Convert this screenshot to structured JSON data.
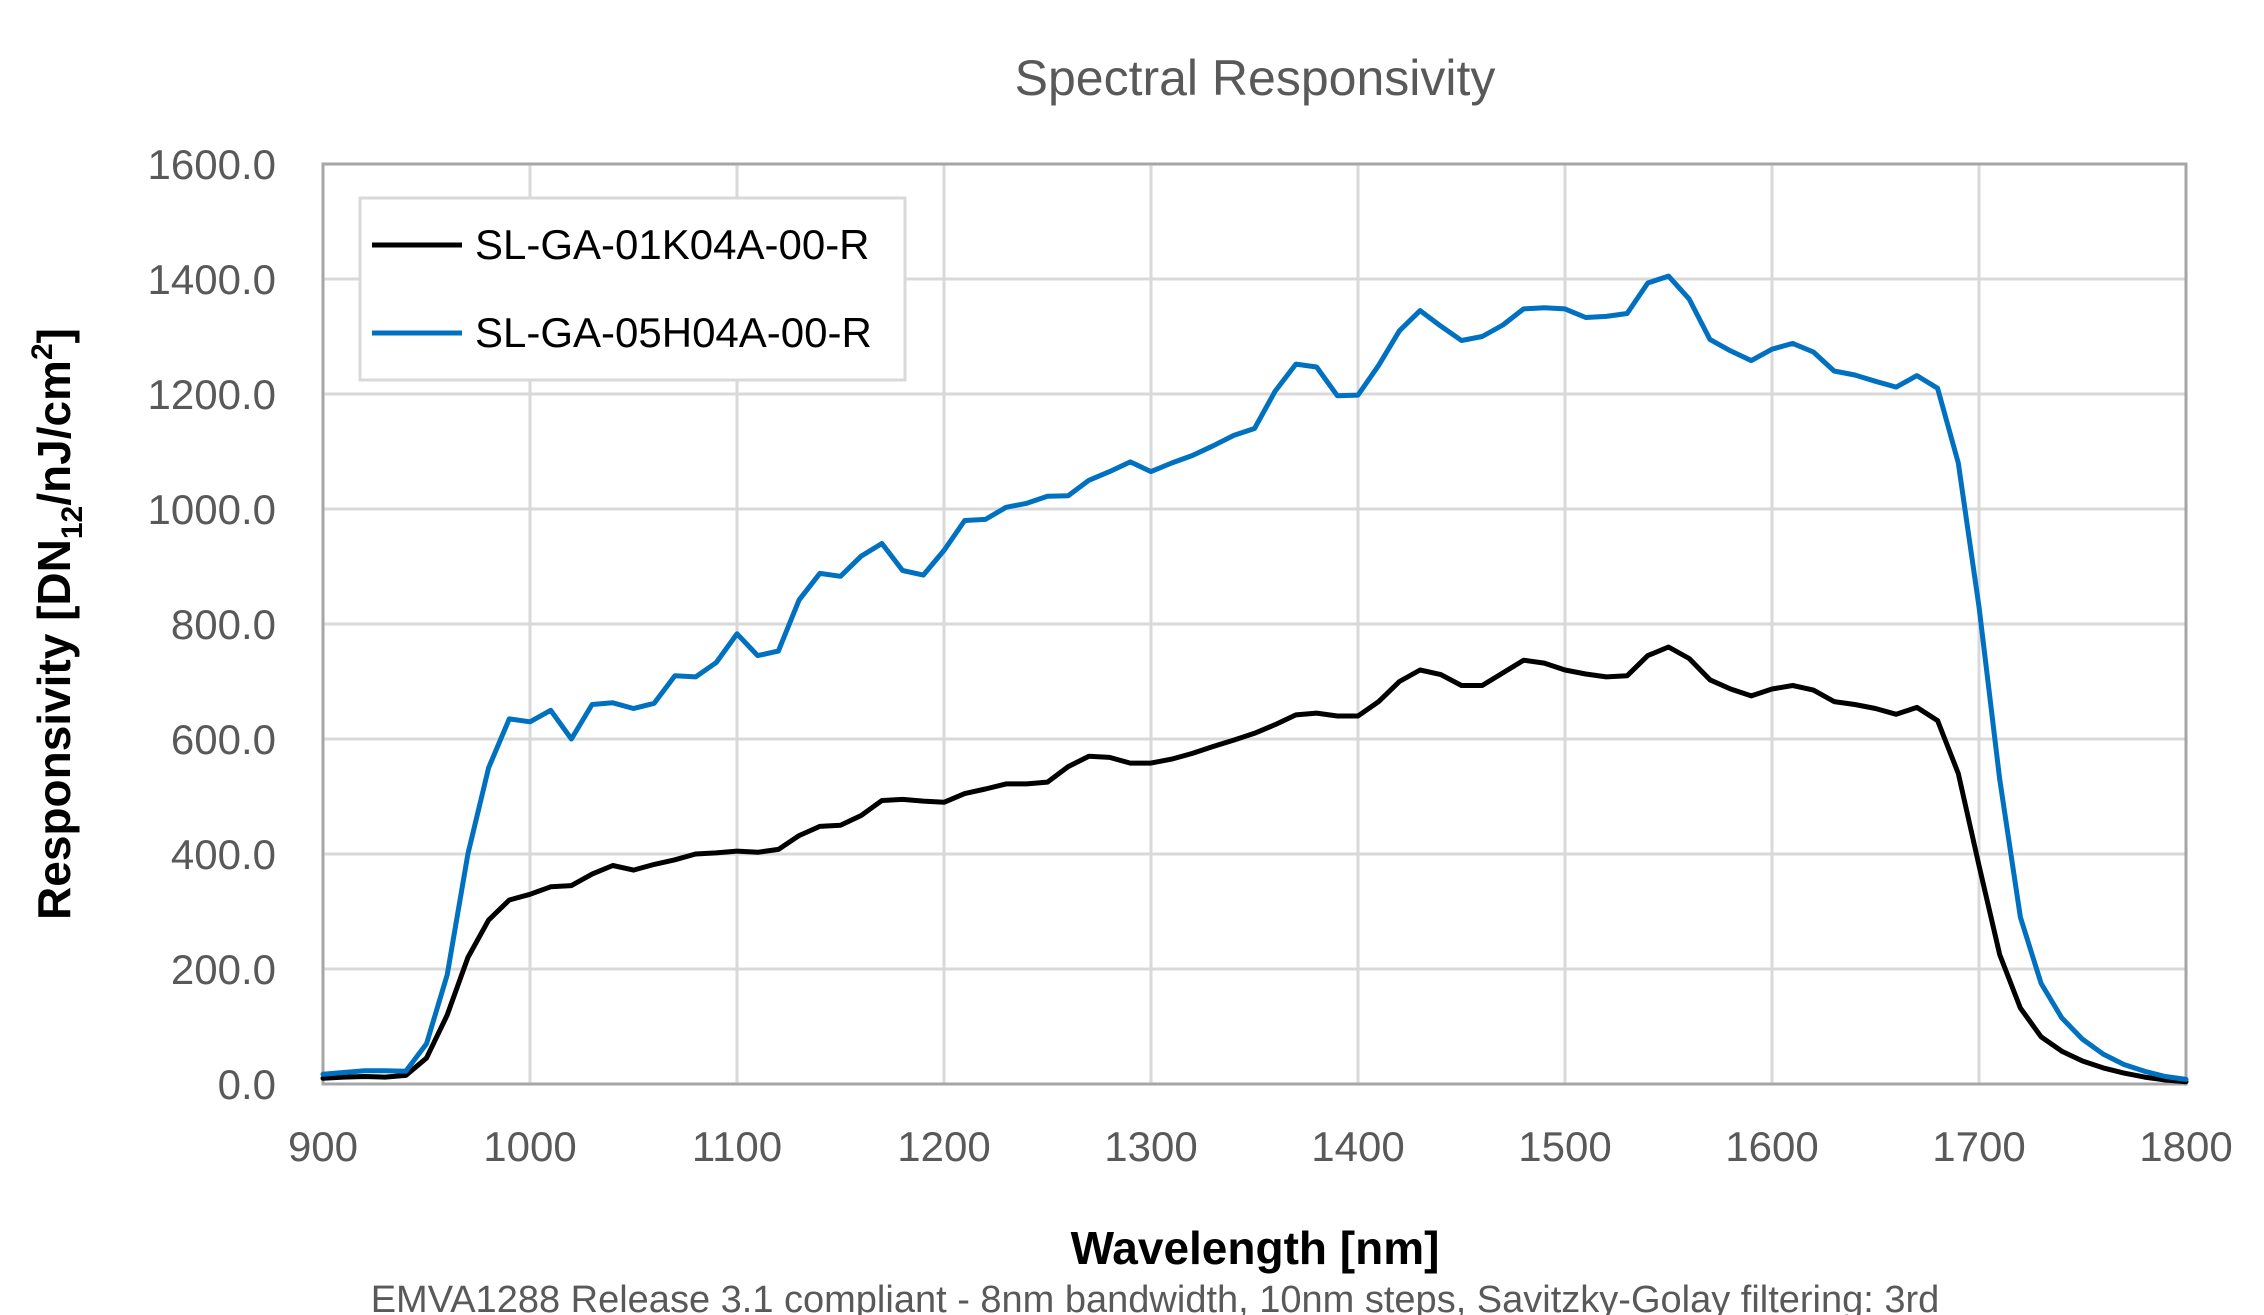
{
  "chart_data": {
    "type": "line",
    "title": "Spectral Responsivity",
    "xlabel": "Wavelength [nm]",
    "ylabel_parts": [
      "Responsivity [DN",
      "12",
      "/nJ/cm",
      "2",
      "]"
    ],
    "footnote": "EMVA1288 Release 3.1 compliant - 8nm bandwidth, 10nm steps, Savitzky-Golay filtering: 3rd",
    "xlim": [
      900,
      1800
    ],
    "ylim": [
      0,
      1600
    ],
    "x_ticks": [
      "900",
      "1000",
      "1100",
      "1200",
      "1300",
      "1400",
      "1500",
      "1600",
      "1700",
      "1800"
    ],
    "y_ticks": [
      "0.0",
      "200.0",
      "400.0",
      "600.0",
      "800.0",
      "1000.0",
      "1200.0",
      "1400.0",
      "1600.0"
    ],
    "grid": true,
    "legend_position": "top-left",
    "x": [
      900,
      910,
      920,
      930,
      940,
      950,
      960,
      970,
      980,
      990,
      1000,
      1010,
      1020,
      1030,
      1040,
      1050,
      1060,
      1070,
      1080,
      1090,
      1100,
      1110,
      1120,
      1130,
      1140,
      1150,
      1160,
      1170,
      1180,
      1190,
      1200,
      1210,
      1220,
      1230,
      1240,
      1250,
      1260,
      1270,
      1280,
      1290,
      1300,
      1310,
      1320,
      1330,
      1340,
      1350,
      1360,
      1370,
      1380,
      1390,
      1400,
      1410,
      1420,
      1430,
      1440,
      1450,
      1460,
      1470,
      1480,
      1490,
      1500,
      1510,
      1520,
      1530,
      1540,
      1550,
      1560,
      1570,
      1580,
      1590,
      1600,
      1610,
      1620,
      1630,
      1640,
      1650,
      1660,
      1670,
      1680,
      1690,
      1700,
      1710,
      1720,
      1730,
      1740,
      1750,
      1760,
      1770,
      1780,
      1790,
      1800
    ],
    "series": [
      {
        "name": "SL-GA-01K04A-00-R",
        "color": "#000000",
        "values": [
          10,
          12,
          13,
          12,
          15,
          45,
          120,
          220,
          285,
          320,
          330,
          343,
          345,
          365,
          380,
          372,
          382,
          390,
          400,
          402,
          405,
          403,
          408,
          432,
          448,
          450,
          467,
          493,
          495,
          492,
          490,
          505,
          513,
          522,
          522,
          525,
          552,
          570,
          568,
          558,
          558,
          565,
          575,
          587,
          598,
          610,
          625,
          642,
          645,
          640,
          640,
          665,
          700,
          720,
          712,
          693,
          693,
          715,
          737,
          732,
          720,
          713,
          708,
          710,
          745,
          760,
          740,
          703,
          687,
          675,
          687,
          693,
          685,
          665,
          660,
          653,
          643,
          655,
          632,
          540,
          380,
          225,
          132,
          82,
          57,
          40,
          28,
          19,
          12,
          7,
          4
        ]
      },
      {
        "name": "SL-GA-05H04A-00-R",
        "color": "#0070c0",
        "values": [
          17,
          20,
          23,
          23,
          22,
          70,
          190,
          400,
          550,
          635,
          630,
          650,
          600,
          660,
          663,
          653,
          662,
          710,
          708,
          733,
          783,
          745,
          753,
          842,
          888,
          883,
          918,
          940,
          893,
          885,
          928,
          980,
          982,
          1003,
          1010,
          1022,
          1023,
          1050,
          1065,
          1082,
          1065,
          1080,
          1093,
          1110,
          1128,
          1140,
          1205,
          1252,
          1247,
          1197,
          1198,
          1250,
          1310,
          1345,
          1318,
          1293,
          1300,
          1320,
          1348,
          1350,
          1348,
          1333,
          1335,
          1340,
          1393,
          1405,
          1365,
          1295,
          1275,
          1258,
          1278,
          1288,
          1273,
          1240,
          1233,
          1222,
          1212,
          1232,
          1210,
          1080,
          830,
          530,
          290,
          175,
          115,
          78,
          52,
          34,
          22,
          13,
          8
        ]
      }
    ]
  }
}
